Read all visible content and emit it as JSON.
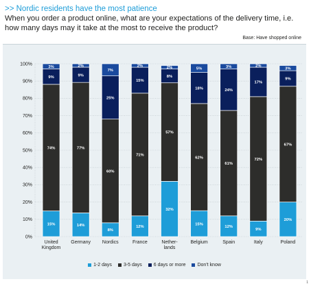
{
  "header": {
    "kicker": ">> Nordic residents have the most patience",
    "question": "When you order a product online, what are your expectations of the delivery time, i.e. how many days may it take at the most to receive the product?",
    "base": "Base: Have shopped online"
  },
  "page_number": "1",
  "colors": {
    "1-2 days": "#1e9dd8",
    "3-5 days": "#2d2d2b",
    "6 days or more": "#0a1f5c",
    "Don't know": "#1a4a9e",
    "panel": "#eaf0f3",
    "grid": "#b9c3c8"
  },
  "chart_data": {
    "type": "bar",
    "stacked": true,
    "categories": [
      "United Kingdom",
      "Germany",
      "Nordics",
      "France",
      "Netherlands",
      "Belgium",
      "Spain",
      "Italy",
      "Poland"
    ],
    "category_labels": [
      [
        "United",
        "Kingdom"
      ],
      [
        "Germany"
      ],
      [
        "Nordics"
      ],
      [
        "France"
      ],
      [
        "Nether-",
        "lands"
      ],
      [
        "Belgium"
      ],
      [
        "Spain"
      ],
      [
        "Italy"
      ],
      [
        "Poland"
      ]
    ],
    "series": [
      {
        "name": "1-2 days",
        "values": [
          15,
          14,
          8,
          12,
          32,
          15,
          12,
          9,
          20
        ]
      },
      {
        "name": "3-5 days",
        "values": [
          74,
          77,
          60,
          71,
          57,
          62,
          61,
          72,
          67
        ]
      },
      {
        "name": "6 days or more",
        "values": [
          9,
          9,
          25,
          15,
          8,
          18,
          24,
          17,
          9
        ]
      },
      {
        "name": "Don't know",
        "values": [
          3,
          2,
          7,
          2,
          2,
          5,
          3,
          2,
          3
        ]
      }
    ],
    "ylim": [
      0,
      100
    ],
    "yticks": [
      "0%",
      "10%",
      "20%",
      "30%",
      "40%",
      "50%",
      "60%",
      "70%",
      "80%",
      "90%",
      "100%"
    ],
    "grid": true,
    "legend_position": "bottom",
    "legend": [
      "1-2 days",
      "3-5 days",
      "6 days or more",
      "Don't know"
    ]
  }
}
